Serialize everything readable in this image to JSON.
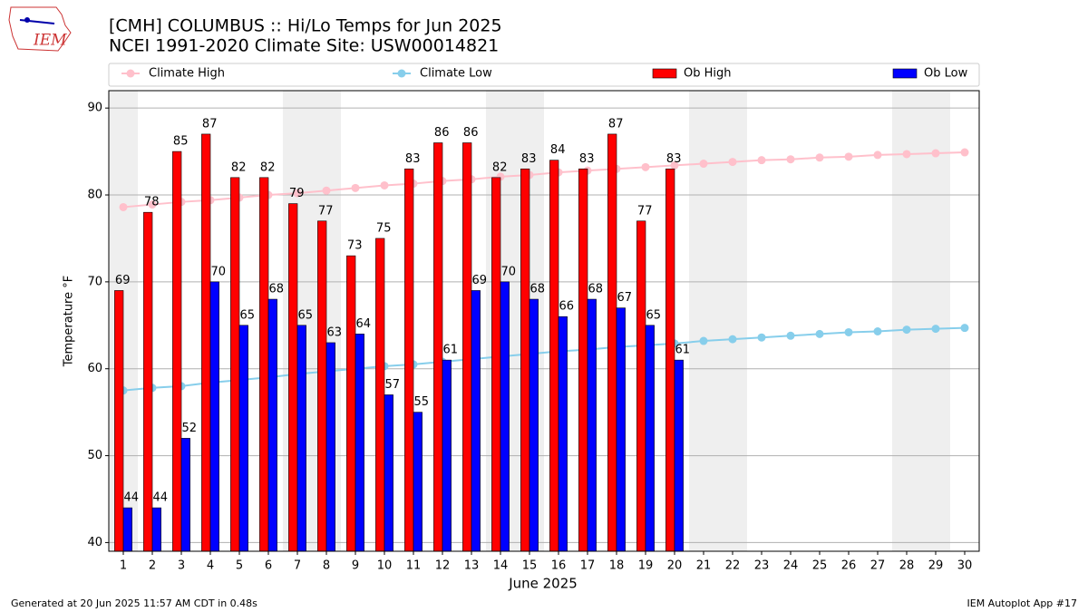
{
  "logo_text": "IEM",
  "footer_left": "Generated at 20 Jun 2025 11:57 AM CDT in 0.48s",
  "footer_right": "IEM Autoplot App #17",
  "chart_data": {
    "type": "bar",
    "title": "[CMH] COLUMBUS :: Hi/Lo Temps for Jun 2025",
    "subtitle": "NCEI 1991-2020 Climate Site: USW00014821",
    "xlabel": "June 2025",
    "ylabel": "Temperature °F",
    "x": [
      1,
      2,
      3,
      4,
      5,
      6,
      7,
      8,
      9,
      10,
      11,
      12,
      13,
      14,
      15,
      16,
      17,
      18,
      19,
      20,
      21,
      22,
      23,
      24,
      25,
      26,
      27,
      28,
      29,
      30
    ],
    "xlim": [
      0.5,
      30.5
    ],
    "xticks": [
      1,
      2,
      3,
      4,
      5,
      6,
      7,
      8,
      9,
      10,
      11,
      12,
      13,
      14,
      15,
      16,
      17,
      18,
      19,
      20,
      21,
      22,
      23,
      24,
      25,
      26,
      27,
      28,
      29,
      30
    ],
    "ylim": [
      39,
      92
    ],
    "yticks": [
      40,
      50,
      60,
      70,
      80,
      90
    ],
    "grid": true,
    "legend": "top",
    "shaded_x": [
      1,
      7,
      8,
      14,
      15,
      21,
      22,
      28,
      29
    ],
    "series": [
      {
        "name": "Climate High",
        "type": "line",
        "color": "#ffc0cb",
        "values": [
          78.6,
          78.9,
          79.2,
          79.4,
          79.7,
          80.0,
          80.2,
          80.5,
          80.8,
          81.1,
          81.3,
          81.6,
          81.8,
          82.1,
          82.3,
          82.6,
          82.8,
          83.0,
          83.2,
          83.4,
          83.6,
          83.8,
          84.0,
          84.1,
          84.3,
          84.4,
          84.6,
          84.7,
          84.8,
          84.9
        ]
      },
      {
        "name": "Climate Low",
        "type": "line",
        "color": "#87ceeb",
        "values": [
          57.5,
          57.8,
          58.0,
          58.4,
          58.7,
          59.0,
          59.4,
          59.7,
          60.0,
          60.3,
          60.5,
          60.8,
          61.1,
          61.4,
          61.7,
          62.0,
          62.2,
          62.5,
          62.7,
          62.9,
          63.2,
          63.4,
          63.6,
          63.8,
          64.0,
          64.2,
          64.3,
          64.5,
          64.6,
          64.7
        ]
      },
      {
        "name": "Ob High",
        "type": "bar",
        "color": "#ff0000",
        "values": [
          69,
          78,
          85,
          87,
          82,
          82,
          79,
          77,
          73,
          75,
          83,
          86,
          86,
          82,
          83,
          84,
          83,
          87,
          77,
          83,
          null,
          null,
          null,
          null,
          null,
          null,
          null,
          null,
          null,
          null
        ]
      },
      {
        "name": "Ob Low",
        "type": "bar",
        "color": "#0000ff",
        "values": [
          44,
          44,
          52,
          70,
          65,
          68,
          65,
          63,
          64,
          57,
          55,
          61,
          69,
          70,
          68,
          66,
          68,
          67,
          65,
          61,
          null,
          null,
          null,
          null,
          null,
          null,
          null,
          null,
          null,
          null
        ]
      }
    ]
  }
}
